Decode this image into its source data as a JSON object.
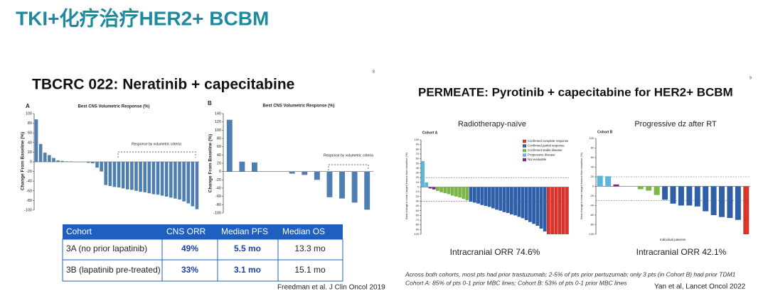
{
  "header": {
    "title": "TKI+化疗治疗HER2+ BCBM"
  },
  "left_panel": {
    "title": "TBCRC 022: Neratinib + capecitabine",
    "page_number": "8",
    "citation": "Freedman et al. J Clin Oncol 2019"
  },
  "right_panel": {
    "title": "PERMEATE: Pyrotinib + capecitabine for HER2+ BCBM",
    "page_number": "9",
    "footnote": [
      "Across both cohorts, most pts had prior trastuzumab; 2-5% of pts prior pertuzumab; only 3 pts (in Cohort B) had prior TDM1",
      "Cohort A: 85% of pts 0-1 prior MBC lines; Cohort B: 53% of pts 0-1 prior MBC lines"
    ],
    "citation": "Yan et al, Lancet Oncol 2022"
  },
  "table": {
    "header": [
      "Cohort",
      "CNS ORR",
      "Median PFS",
      "Median OS"
    ],
    "rows": [
      [
        "3A (no prior lapatinib)",
        "49%",
        "5.5 mo",
        "13.3 mo"
      ],
      [
        "3B (lapatinib pre-treated)",
        "33%",
        "3.1 mo",
        "15.1 mo"
      ]
    ]
  },
  "chart_data": [
    {
      "type": "bar",
      "panel_label": "A",
      "title": "Best CNS Volumetric Response (%)",
      "y_label": "Change From Baseline (%)",
      "annotation": "Response by volumetric criteria",
      "values": [
        88,
        37,
        19,
        14,
        8,
        3,
        2,
        1,
        1,
        0,
        0,
        0,
        -2,
        -3,
        -12,
        -20,
        -48,
        -50,
        -52,
        -53,
        -55,
        -57,
        -58,
        -60,
        -62,
        -63,
        -65,
        -67,
        -68,
        -70,
        -72,
        -74,
        -76,
        -78,
        -82,
        -86,
        -92,
        -98
      ],
      "color": "#4f7fb0",
      "ylim": [
        -100,
        100
      ],
      "yticks": [
        100,
        80,
        60,
        40,
        20,
        0,
        -20,
        -40,
        -60,
        -80,
        -100
      ]
    },
    {
      "type": "bar",
      "panel_label": "B",
      "title": "Best CNS Volumetric Response (%)",
      "y_label": "Change From Baseline (%)",
      "annotation": "Response by volumetric criteria",
      "values": [
        125,
        24,
        22,
        0,
        0,
        -5,
        -8,
        -20,
        -62,
        -65,
        -75,
        -92
      ],
      "color": "#4f7fb0",
      "ylim": [
        -100,
        140
      ],
      "yticks": [
        140,
        120,
        100,
        80,
        60,
        40,
        20,
        0,
        -20,
        -40,
        -60,
        -80,
        -100
      ]
    },
    {
      "type": "bar",
      "title": "Radiotherapy-naïve",
      "subtitle": "Cohort A",
      "y_label": "Best change in brain target lesions from baseline (%)",
      "caption": "Intracranial ORR 74.6%",
      "ylim": [
        -100,
        100
      ],
      "yticks": [
        100,
        90,
        80,
        70,
        60,
        50,
        40,
        30,
        20,
        10,
        0,
        -10,
        -20,
        -30,
        -40,
        -50,
        -60,
        -70,
        -80,
        -90,
        -100
      ],
      "reference_lines": [
        20,
        -30
      ],
      "legend": "upper right",
      "series": [
        {
          "name": "Confirmed complete response",
          "color": "#d9342b",
          "values": [
            null,
            null,
            null,
            null,
            null,
            null,
            null,
            null,
            null,
            null,
            null,
            null,
            null,
            null,
            null,
            null,
            null,
            null,
            null,
            null,
            null,
            null,
            null,
            null,
            null,
            null,
            null,
            null,
            null,
            null,
            null,
            null,
            null,
            null,
            -100,
            -100,
            -100,
            -100,
            -100,
            -100
          ]
        },
        {
          "name": "Confirmed partial response",
          "color": "#2e5fa8",
          "values": [
            null,
            null,
            null,
            null,
            null,
            null,
            null,
            null,
            null,
            null,
            null,
            null,
            null,
            -31,
            -33,
            -35,
            -38,
            -40,
            -42,
            -45,
            -48,
            -50,
            -53,
            -55,
            -58,
            -60,
            -63,
            -66,
            -70,
            -74,
            -78,
            -82,
            -88,
            -94,
            null,
            null,
            null,
            null,
            null,
            null
          ]
        },
        {
          "name": "Confirmed stable disease",
          "color": "#7ab648",
          "values": [
            null,
            null,
            null,
            null,
            -8,
            -11,
            -13,
            -15,
            -18,
            -20,
            -22,
            -25,
            -28,
            null,
            null,
            null,
            null,
            null,
            null,
            null,
            null,
            null,
            null,
            null,
            null,
            null,
            null,
            null,
            null,
            null,
            null,
            null,
            null,
            null,
            null,
            null,
            null,
            null,
            null,
            null
          ]
        },
        {
          "name": "Progressive disease",
          "color": "#5bb6d9",
          "values": [
            55,
            10,
            null,
            null,
            null,
            null,
            null,
            null,
            null,
            null,
            null,
            null,
            null,
            null,
            null,
            null,
            null,
            null,
            null,
            null,
            null,
            null,
            null,
            null,
            null,
            null,
            null,
            null,
            null,
            null,
            null,
            null,
            null,
            null,
            null,
            null,
            null,
            null,
            null,
            null
          ]
        },
        {
          "name": "Not evaluable",
          "color": "#7b2a7e",
          "values": [
            null,
            null,
            -3,
            -5,
            null,
            null,
            null,
            null,
            null,
            null,
            null,
            null,
            null,
            null,
            null,
            null,
            null,
            null,
            null,
            null,
            null,
            null,
            null,
            null,
            null,
            null,
            null,
            null,
            null,
            null,
            null,
            null,
            null,
            null,
            null,
            null,
            null,
            null,
            null,
            null
          ]
        }
      ]
    },
    {
      "type": "bar",
      "title": "Progressive dz after RT",
      "subtitle": "Cohort B",
      "y_label": "Best change in brain target lesions from baseline (%)",
      "x_label": "Individual patients",
      "caption": "Intracranial ORR 42.1%",
      "ylim": [
        -100,
        100
      ],
      "yticks": [
        100,
        80,
        60,
        40,
        20,
        0,
        -20,
        -40,
        -60,
        -80,
        -100
      ],
      "reference_lines": [
        20,
        -30
      ],
      "series": [
        {
          "color": "#d9342b",
          "values": [
            null,
            null,
            null,
            null,
            null,
            null,
            null,
            null,
            null,
            null,
            null,
            null,
            null,
            null,
            null,
            null,
            null,
            null,
            -100
          ]
        },
        {
          "color": "#2e5fa8",
          "values": [
            null,
            null,
            null,
            null,
            null,
            null,
            null,
            null,
            -28,
            -36,
            -40,
            -40,
            -42,
            -52,
            -60,
            -64,
            -66,
            -70,
            null
          ]
        },
        {
          "color": "#7ab648",
          "values": [
            null,
            null,
            null,
            null,
            null,
            -6,
            -9,
            -18,
            null,
            null,
            null,
            null,
            null,
            null,
            null,
            null,
            null,
            null,
            null
          ]
        },
        {
          "color": "#5bb6d9",
          "values": [
            22,
            21,
            null,
            null,
            null,
            null,
            null,
            null,
            null,
            null,
            null,
            null,
            null,
            null,
            null,
            null,
            null,
            null,
            null
          ]
        },
        {
          "color": "#7b2a7e",
          "values": [
            null,
            null,
            4,
            null,
            null,
            null,
            null,
            null,
            null,
            null,
            null,
            null,
            null,
            null,
            null,
            null,
            null,
            null,
            null
          ]
        }
      ]
    }
  ]
}
